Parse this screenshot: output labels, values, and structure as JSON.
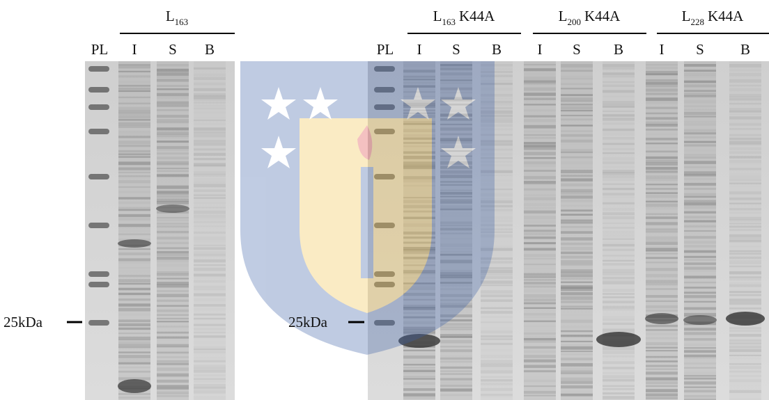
{
  "left_gel": {
    "construct": {
      "base": "L",
      "subscript": "163"
    },
    "lanes": [
      "PL",
      "I",
      "S",
      "B"
    ],
    "marker": "25kDa"
  },
  "right_gel": {
    "constructs": [
      {
        "base": "L",
        "subscript": "163",
        "suffix": "K44A"
      },
      {
        "base": "L",
        "subscript": "200",
        "suffix": "K44A"
      },
      {
        "base": "L",
        "subscript": "228",
        "suffix": "K44A"
      }
    ],
    "lanes": [
      "PL",
      "I",
      "S",
      "B",
      "I",
      "S",
      "B",
      "I",
      "S",
      "B"
    ],
    "marker": "25kDa"
  }
}
